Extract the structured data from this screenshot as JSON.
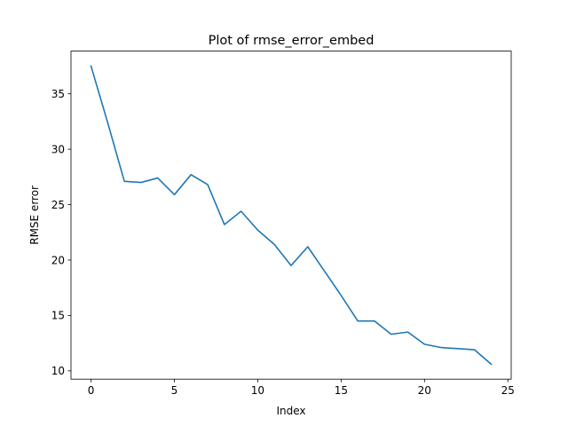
{
  "chart_data": {
    "type": "line",
    "title": "Plot of rmse_error_embed",
    "xlabel": "Index",
    "ylabel": "RMSE error",
    "xlim": [
      -1.2,
      25.2
    ],
    "ylim": [
      9.25,
      38.85
    ],
    "xticks": [
      0,
      5,
      10,
      15,
      20,
      25
    ],
    "yticks": [
      10,
      15,
      20,
      25,
      30,
      35
    ],
    "grid": false,
    "series_color": "#1f77b4",
    "x": [
      0,
      1,
      2,
      3,
      4,
      5,
      6,
      7,
      8,
      9,
      10,
      11,
      12,
      13,
      14,
      15,
      16,
      17,
      18,
      19,
      20,
      21,
      22,
      23,
      24
    ],
    "values": [
      37.5,
      32.4,
      27.1,
      27.0,
      27.4,
      25.9,
      27.7,
      26.8,
      23.2,
      24.4,
      22.7,
      21.4,
      19.5,
      21.2,
      19.0,
      16.8,
      14.5,
      14.5,
      13.3,
      13.5,
      12.4,
      12.1,
      12.0,
      11.9,
      10.6
    ]
  }
}
